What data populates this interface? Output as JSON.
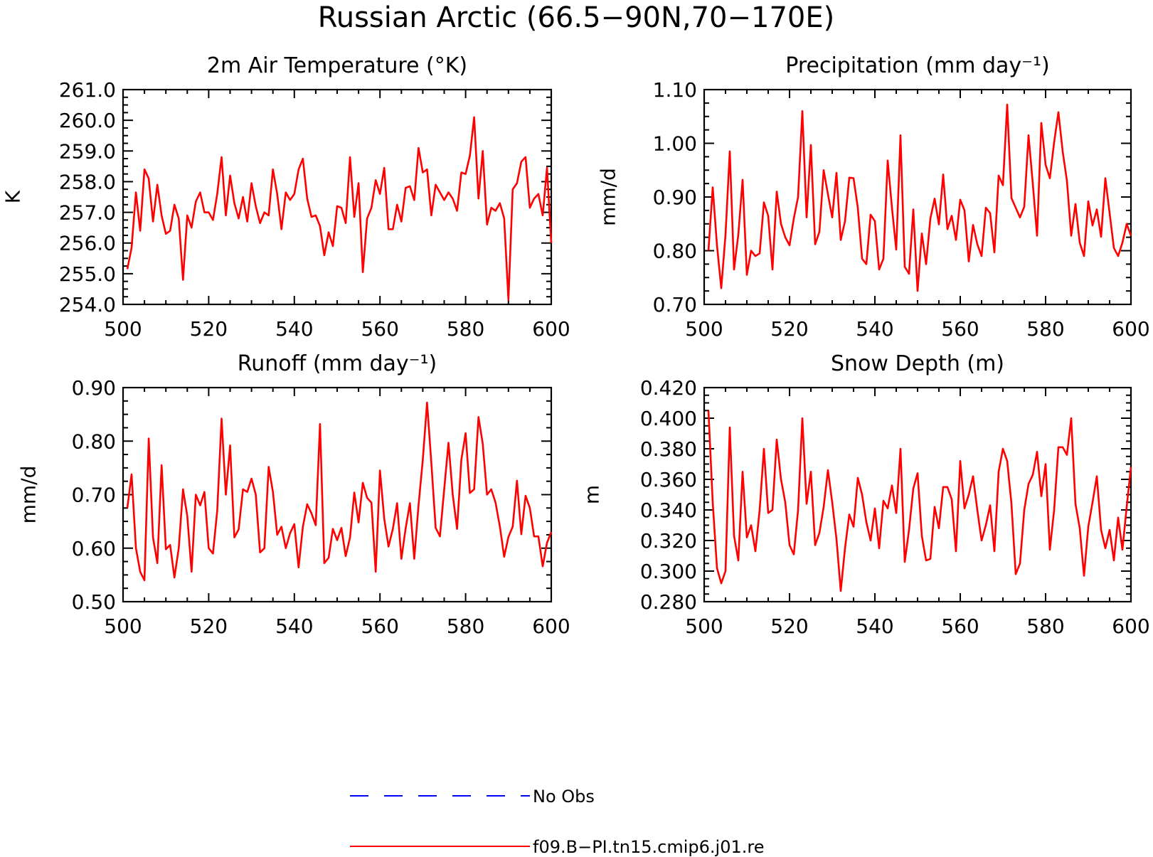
{
  "figure": {
    "title": "Russian Arctic (66.5−90N,70−170E)"
  },
  "legend": {
    "items": [
      {
        "label": "No Obs",
        "color": "#0000ff",
        "style": "dashed"
      },
      {
        "label": "f09.B−PI.tn15.cmip6.j01.re",
        "color": "#ff0000",
        "style": "solid"
      }
    ]
  },
  "chart_data": [
    {
      "type": "line",
      "title": "2m Air Temperature (°K)",
      "xlabel": "",
      "ylabel": "K",
      "xlim": [
        500,
        600
      ],
      "ylim": [
        254.0,
        261.0
      ],
      "xticks": [
        500,
        520,
        540,
        560,
        580,
        600
      ],
      "xtick_labels": [
        "500",
        "520",
        "540",
        "560",
        "580",
        "600"
      ],
      "yticks": [
        254,
        255,
        256,
        257,
        258,
        259,
        260,
        261
      ],
      "ytick_labels": [
        "254.0",
        "255.0",
        "256.0",
        "257.0",
        "258.0",
        "259.0",
        "260.0",
        "261.0"
      ],
      "grid": false,
      "series": [
        {
          "name": "f09.B−PI.tn15.cmip6.j01.re",
          "color": "#ff0000",
          "x_start": 501,
          "x_step": 1,
          "values": [
            255.15,
            255.85,
            257.65,
            256.4,
            258.4,
            258.1,
            256.7,
            257.9,
            256.9,
            256.3,
            256.4,
            257.25,
            256.8,
            254.8,
            256.9,
            256.5,
            257.35,
            257.65,
            257.0,
            257.0,
            256.75,
            257.6,
            258.8,
            256.9,
            258.2,
            257.3,
            256.8,
            257.5,
            256.7,
            257.95,
            257.2,
            256.65,
            257.0,
            256.9,
            258.4,
            257.6,
            256.45,
            257.65,
            257.4,
            257.6,
            258.4,
            258.75,
            257.45,
            256.85,
            256.9,
            256.55,
            255.6,
            256.35,
            255.9,
            257.2,
            257.15,
            256.65,
            258.8,
            256.85,
            257.95,
            255.05,
            256.8,
            257.15,
            258.05,
            257.6,
            258.45,
            256.45,
            256.45,
            257.25,
            256.7,
            257.8,
            257.85,
            257.4,
            259.1,
            258.3,
            258.4,
            256.9,
            257.9,
            257.65,
            257.4,
            257.65,
            257.45,
            257.05,
            258.3,
            258.25,
            258.85,
            260.1,
            257.45,
            259.0,
            256.6,
            257.15,
            257.05,
            257.3,
            256.8,
            254.15,
            257.75,
            257.95,
            258.65,
            258.8,
            257.15,
            257.45,
            257.6,
            256.9,
            258.45,
            256.0
          ]
        }
      ]
    },
    {
      "type": "line",
      "title": "Precipitation (mm day⁻¹)",
      "xlabel": "",
      "ylabel": "mm/d",
      "xlim": [
        500,
        600
      ],
      "ylim": [
        0.7,
        1.1
      ],
      "xticks": [
        500,
        520,
        540,
        560,
        580,
        600
      ],
      "xtick_labels": [
        "500",
        "520",
        "540",
        "560",
        "580",
        "600"
      ],
      "yticks": [
        0.7,
        0.8,
        0.9,
        1.0,
        1.1
      ],
      "ytick_labels": [
        "0.70",
        "0.80",
        "0.90",
        "1.00",
        "1.10"
      ],
      "grid": false,
      "series": [
        {
          "name": "f09.B−PI.tn15.cmip6.j01.re",
          "color": "#ff0000",
          "x_start": 501,
          "x_step": 1,
          "values": [
            0.8,
            0.918,
            0.81,
            0.73,
            0.83,
            0.985,
            0.765,
            0.83,
            0.932,
            0.755,
            0.8,
            0.79,
            0.795,
            0.89,
            0.865,
            0.765,
            0.91,
            0.85,
            0.825,
            0.81,
            0.86,
            0.9,
            1.06,
            0.862,
            0.997,
            0.812,
            0.835,
            0.95,
            0.905,
            0.862,
            0.945,
            0.82,
            0.855,
            0.936,
            0.935,
            0.88,
            0.785,
            0.775,
            0.867,
            0.855,
            0.765,
            0.785,
            0.968,
            0.88,
            0.802,
            1.015,
            0.77,
            0.757,
            0.877,
            0.725,
            0.832,
            0.775,
            0.86,
            0.897,
            0.849,
            0.942,
            0.84,
            0.865,
            0.82,
            0.895,
            0.875,
            0.78,
            0.848,
            0.812,
            0.79,
            0.88,
            0.87,
            0.797,
            0.94,
            0.922,
            1.072,
            0.898,
            0.88,
            0.862,
            0.882,
            1.015,
            0.925,
            0.828,
            1.038,
            0.96,
            0.935,
            1.002,
            1.058,
            0.985,
            0.93,
            0.828,
            0.887,
            0.815,
            0.79,
            0.892,
            0.847,
            0.877,
            0.826,
            0.935,
            0.87,
            0.805,
            0.79,
            0.815,
            0.85,
            0.828
          ]
        }
      ]
    },
    {
      "type": "line",
      "title": "Runoff (mm day⁻¹)",
      "xlabel": "",
      "ylabel": "mm/d",
      "xlim": [
        500,
        600
      ],
      "ylim": [
        0.5,
        0.9
      ],
      "xticks": [
        500,
        520,
        540,
        560,
        580,
        600
      ],
      "xtick_labels": [
        "500",
        "520",
        "540",
        "560",
        "580",
        "600"
      ],
      "yticks": [
        0.5,
        0.6,
        0.7,
        0.8,
        0.9
      ],
      "ytick_labels": [
        "0.50",
        "0.60",
        "0.70",
        "0.80",
        "0.90"
      ],
      "grid": false,
      "series": [
        {
          "name": "f09.B−PI.tn15.cmip6.j01.re",
          "color": "#ff0000",
          "x_start": 501,
          "x_step": 1,
          "values": [
            0.675,
            0.738,
            0.6,
            0.556,
            0.54,
            0.805,
            0.62,
            0.572,
            0.755,
            0.598,
            0.606,
            0.545,
            0.6,
            0.71,
            0.66,
            0.556,
            0.7,
            0.68,
            0.705,
            0.6,
            0.59,
            0.67,
            0.842,
            0.7,
            0.792,
            0.62,
            0.635,
            0.71,
            0.705,
            0.73,
            0.7,
            0.592,
            0.6,
            0.752,
            0.705,
            0.625,
            0.64,
            0.6,
            0.628,
            0.645,
            0.564,
            0.64,
            0.682,
            0.665,
            0.643,
            0.832,
            0.572,
            0.582,
            0.636,
            0.615,
            0.638,
            0.585,
            0.62,
            0.704,
            0.648,
            0.722,
            0.694,
            0.685,
            0.556,
            0.745,
            0.655,
            0.603,
            0.636,
            0.684,
            0.58,
            0.637,
            0.684,
            0.58,
            0.68,
            0.765,
            0.872,
            0.76,
            0.638,
            0.622,
            0.71,
            0.797,
            0.7,
            0.636,
            0.765,
            0.815,
            0.703,
            0.71,
            0.845,
            0.795,
            0.7,
            0.71,
            0.685,
            0.64,
            0.584,
            0.621,
            0.64,
            0.726,
            0.626,
            0.698,
            0.675,
            0.622,
            0.622,
            0.566,
            0.61,
            0.63
          ]
        }
      ]
    },
    {
      "type": "line",
      "title": "Snow Depth (m)",
      "xlabel": "",
      "ylabel": "m",
      "xlim": [
        500,
        600
      ],
      "ylim": [
        0.28,
        0.42
      ],
      "xticks": [
        500,
        520,
        540,
        560,
        580,
        600
      ],
      "xtick_labels": [
        "500",
        "520",
        "540",
        "560",
        "580",
        "600"
      ],
      "yticks": [
        0.28,
        0.3,
        0.32,
        0.34,
        0.36,
        0.38,
        0.4,
        0.42
      ],
      "ytick_labels": [
        "0.280",
        "0.300",
        "0.320",
        "0.340",
        "0.360",
        "0.380",
        "0.400",
        "0.420"
      ],
      "grid": false,
      "series": [
        {
          "name": "f09.B−PI.tn15.cmip6.j01.re",
          "color": "#ff0000",
          "x_start": 501,
          "x_step": 1,
          "values": [
            0.405,
            0.345,
            0.302,
            0.292,
            0.3,
            0.394,
            0.323,
            0.307,
            0.365,
            0.322,
            0.33,
            0.313,
            0.34,
            0.38,
            0.338,
            0.34,
            0.386,
            0.36,
            0.345,
            0.317,
            0.311,
            0.34,
            0.4,
            0.344,
            0.365,
            0.317,
            0.325,
            0.342,
            0.366,
            0.345,
            0.321,
            0.287,
            0.315,
            0.337,
            0.329,
            0.361,
            0.35,
            0.332,
            0.32,
            0.341,
            0.315,
            0.346,
            0.341,
            0.356,
            0.338,
            0.38,
            0.306,
            0.327,
            0.354,
            0.364,
            0.323,
            0.307,
            0.308,
            0.342,
            0.328,
            0.355,
            0.355,
            0.347,
            0.313,
            0.372,
            0.341,
            0.35,
            0.362,
            0.34,
            0.32,
            0.33,
            0.343,
            0.313,
            0.365,
            0.38,
            0.372,
            0.344,
            0.298,
            0.305,
            0.34,
            0.357,
            0.363,
            0.378,
            0.349,
            0.37,
            0.314,
            0.34,
            0.381,
            0.381,
            0.376,
            0.4,
            0.344,
            0.328,
            0.297,
            0.329,
            0.345,
            0.362,
            0.327,
            0.315,
            0.327,
            0.307,
            0.335,
            0.314,
            0.342,
            0.368
          ]
        }
      ]
    }
  ]
}
